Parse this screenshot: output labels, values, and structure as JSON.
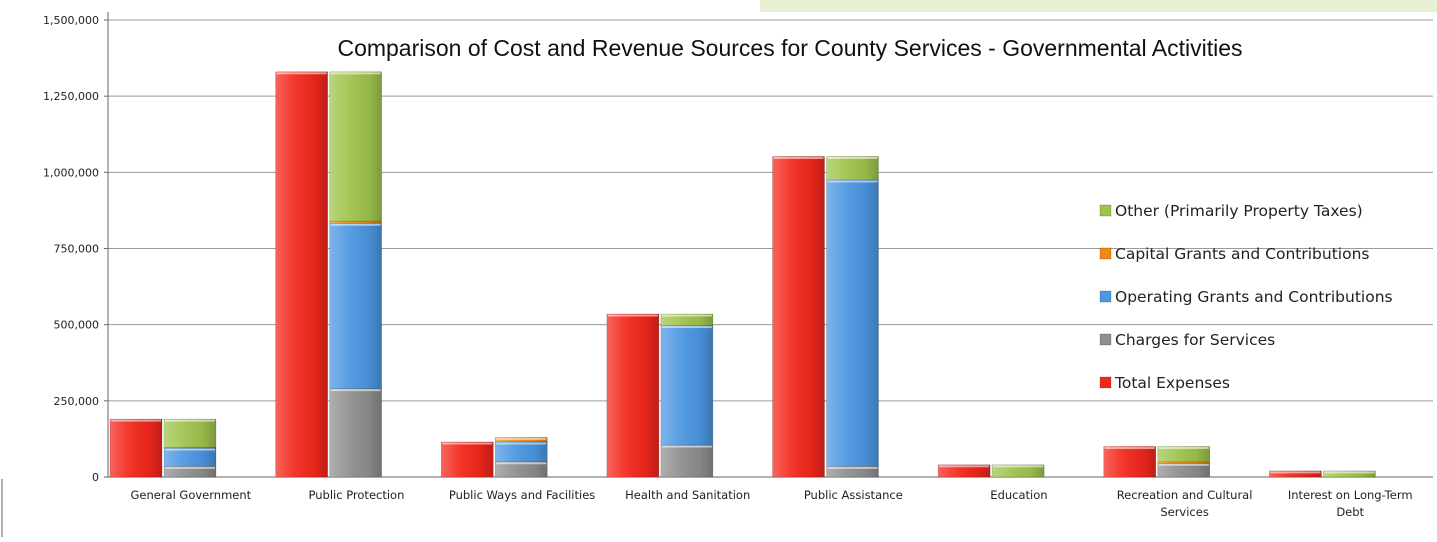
{
  "colors": {
    "background_band": "#e7f0d3",
    "gridline": "#9a9a9a",
    "axis": "#666666"
  },
  "chart_data": {
    "type": "bar",
    "stacked": true,
    "title": "Comparison of Cost and Revenue Sources for County Services - Governmental Activities",
    "xlabel": "",
    "ylabel": "",
    "ylim": [
      0,
      1500000
    ],
    "yticks": [
      "0",
      "250,000",
      "500,000",
      "750,000",
      "1,000,000",
      "1,250,000",
      "1,500,000"
    ],
    "grid": true,
    "legend_position": "right",
    "categories": [
      [
        "General Government"
      ],
      [
        "Public Protection"
      ],
      [
        "Public Ways and Facilities"
      ],
      [
        "Health and Sanitation"
      ],
      [
        "Public Assistance"
      ],
      [
        "Education"
      ],
      [
        "Recreation and Cultural",
        "Services"
      ],
      [
        "Interest on Long-Term",
        "Debt"
      ]
    ],
    "series": [
      {
        "name": "Total Expenses",
        "stack": "expenses",
        "color": "#f3271c",
        "values": [
          190000,
          1330000,
          115000,
          535000,
          1052000,
          40000,
          100000,
          20000
        ]
      },
      {
        "name": "Charges for Services",
        "stack": "revenue",
        "color": "#8f8f8f",
        "values": [
          35000,
          290000,
          50000,
          105000,
          35000,
          0,
          45000,
          0
        ]
      },
      {
        "name": "Operating Grants and Contributions",
        "stack": "revenue",
        "color": "#4c97e2",
        "values": [
          60000,
          543000,
          65000,
          392000,
          940000,
          0,
          0,
          0
        ]
      },
      {
        "name": "Capital Grants and Contributions",
        "stack": "revenue",
        "color": "#f08a16",
        "values": [
          2000,
          7000,
          15000,
          0,
          0,
          0,
          5000,
          0
        ]
      },
      {
        "name": "Other (Primarily Property Taxes)",
        "stack": "revenue",
        "color": "#9fc44c",
        "values": [
          93000,
          490000,
          0,
          38000,
          77000,
          40000,
          50000,
          20000
        ]
      }
    ],
    "legend_order": [
      "Other (Primarily Property Taxes)",
      "Capital Grants and Contributions",
      "Operating Grants and Contributions",
      "Charges for Services",
      "Total Expenses"
    ]
  }
}
